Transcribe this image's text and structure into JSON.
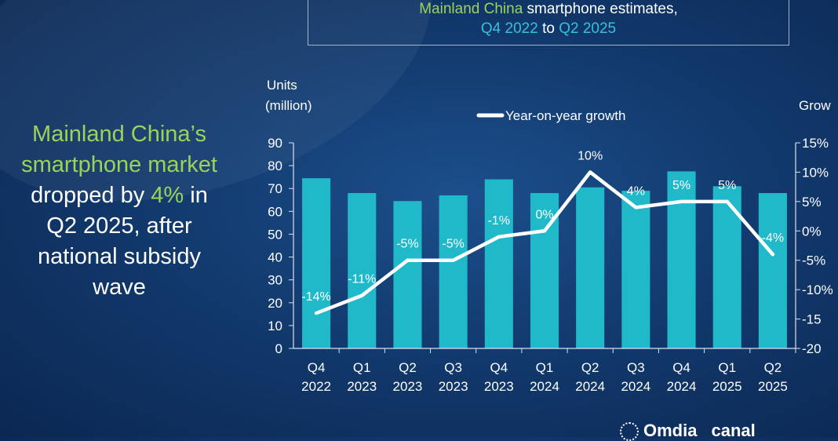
{
  "title": {
    "part1": "Mainland China",
    "part2": " smartphone estimates,",
    "part3": "Q4 2022",
    "part4": " to ",
    "part5": "Q2 2025"
  },
  "headline": {
    "line1": "Mainland China’s",
    "line2": "smartphone market",
    "line3_a": "dropped by ",
    "line3_b": "4%",
    "line3_c": " in",
    "line4": "Q2 2025, after",
    "line5": "national subsidy",
    "line6": "wave"
  },
  "brand": {
    "name": "Omdia",
    "partner": "canal"
  },
  "colors": {
    "bar": "#20b9c9",
    "line": "#ffffff",
    "green": "#9bd35a",
    "cyan": "#35c2d8"
  },
  "chart_data": {
    "type": "bar",
    "categories": [
      [
        "Q4",
        "2022"
      ],
      [
        "Q1",
        "2023"
      ],
      [
        "Q2",
        "2023"
      ],
      [
        "Q3",
        "2023"
      ],
      [
        "Q4",
        "2023"
      ],
      [
        "Q1",
        "2024"
      ],
      [
        "Q2",
        "2024"
      ],
      [
        "Q3",
        "2024"
      ],
      [
        "Q4",
        "2024"
      ],
      [
        "Q1",
        "2025"
      ],
      [
        "Q2",
        "2025"
      ]
    ],
    "series": [
      {
        "type": "bar",
        "axis": "left",
        "values": [
          74.5,
          68,
          64.5,
          67,
          74,
          68,
          70.5,
          69,
          77.5,
          71,
          68
        ]
      },
      {
        "name": "Year-on-year growth",
        "type": "line",
        "axis": "right",
        "values": [
          -14,
          -11,
          -5,
          -5,
          -1,
          0,
          10,
          4,
          5,
          5,
          -4
        ],
        "labels": [
          "-14%",
          "-11%",
          "-5%",
          "-5%",
          "-1%",
          "0%",
          "10%",
          "4%",
          "5%",
          "5%",
          "-4%"
        ]
      }
    ],
    "ylabel_line1": "Units",
    "ylabel_line2": "(million)",
    "y2label": "Grow",
    "ylim": [
      0,
      90
    ],
    "yticks": [
      0,
      10,
      20,
      30,
      40,
      50,
      60,
      70,
      80,
      90
    ],
    "y2lim": [
      -20,
      15
    ],
    "y2ticks": [
      "-20",
      "-15",
      "-10%",
      "-5%",
      "0%",
      "5%",
      "10%",
      "15%"
    ],
    "legend": "top-center",
    "grid": false
  }
}
